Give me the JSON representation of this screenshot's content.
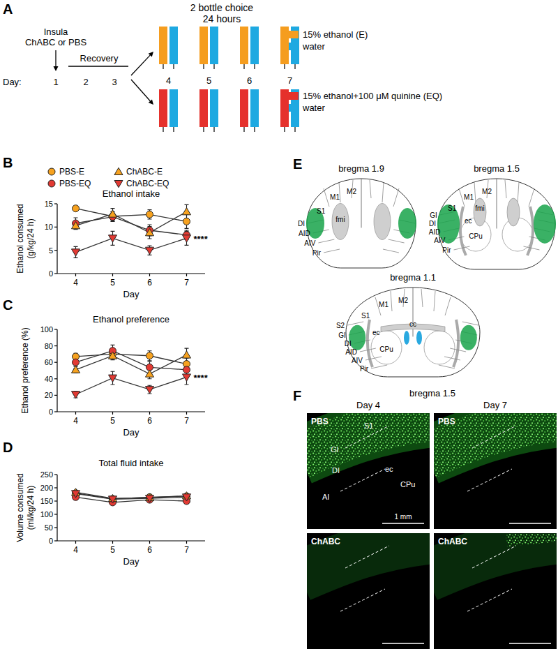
{
  "panel_labels": [
    "A",
    "B",
    "C",
    "D",
    "E",
    "F"
  ],
  "schematic": {
    "header": [
      "2 bottle choice",
      "24 hours"
    ],
    "treatment": [
      "Insula",
      "ChABC or PBS"
    ],
    "recovery": "Recovery",
    "day_label": "Day:",
    "surgery_days": [
      1,
      2,
      3
    ],
    "choice_days": [
      4,
      5,
      6,
      7
    ],
    "groups": [
      {
        "bottles": [
          {
            "label": "15% ethanol (E)",
            "color": "#f59d1f"
          },
          {
            "label": "water",
            "color": "#1ea9e1"
          }
        ]
      },
      {
        "bottles": [
          {
            "label": "15% ethanol+100 μM quinine (EQ)",
            "color": "#e5312c"
          },
          {
            "label": "water",
            "color": "#1ea9e1"
          }
        ]
      }
    ]
  },
  "chart_data": [
    {
      "type": "line",
      "title": "Ethanol intake",
      "x_label": "Day",
      "y_label": [
        "Ethanol consumed",
        "(g/kg/24 h)"
      ],
      "x": [
        4,
        5,
        6,
        7
      ],
      "xlim": [
        3.5,
        7.5
      ],
      "xticks": [
        4,
        5,
        6,
        7
      ],
      "ylim": [
        0,
        15
      ],
      "yticks": [
        0,
        5,
        10,
        15
      ],
      "legend": "top",
      "annotation": "****",
      "series": [
        {
          "name": "PBS-E",
          "color": "#f7a21f",
          "marker": "circle",
          "values": [
            14.0,
            12.3,
            12.7,
            11.2
          ],
          "errors": [
            0.5,
            1.0,
            1.0,
            1.5
          ]
        },
        {
          "name": "PBS-EQ",
          "color": "#e23a33",
          "marker": "circle",
          "values": [
            10.8,
            12.2,
            9.3,
            8.3
          ],
          "errors": [
            1.2,
            1.0,
            1.2,
            1.0
          ]
        },
        {
          "name": "ChABC-E",
          "color": "#f7a21f",
          "marker": "triangle",
          "values": [
            10.3,
            12.8,
            8.8,
            13.3
          ],
          "errors": [
            0.8,
            1.2,
            1.3,
            1.5
          ]
        },
        {
          "name": "ChABC-EQ",
          "color": "#e23a33",
          "marker": "triangle-down",
          "values": [
            4.6,
            7.6,
            5.0,
            7.6
          ],
          "errors": [
            1.2,
            1.5,
            1.0,
            1.5
          ]
        }
      ]
    },
    {
      "type": "line",
      "title": "Ethanol preference",
      "x_label": "Day",
      "y_label": "Ethanol preference (%)",
      "x": [
        4,
        5,
        6,
        7
      ],
      "xlim": [
        3.5,
        7.5
      ],
      "xticks": [
        4,
        5,
        6,
        7
      ],
      "ylim": [
        0,
        100
      ],
      "yticks": [
        0,
        20,
        40,
        60,
        80,
        100
      ],
      "annotation": "****",
      "series": [
        {
          "color": "#f7a21f",
          "marker": "circle",
          "values": [
            67,
            70,
            68,
            58
          ],
          "errors": [
            4,
            5,
            6,
            7
          ]
        },
        {
          "color": "#e23a33",
          "marker": "circle",
          "values": [
            60,
            74,
            54,
            51
          ],
          "errors": [
            7,
            7,
            7,
            7
          ]
        },
        {
          "color": "#f7a21f",
          "marker": "triangle",
          "values": [
            51,
            68,
            46,
            69
          ],
          "errors": [
            4,
            5,
            6,
            8
          ]
        },
        {
          "color": "#e23a33",
          "marker": "triangle-down",
          "values": [
            21,
            41,
            27,
            42
          ],
          "errors": [
            4,
            8,
            5,
            9
          ]
        }
      ]
    },
    {
      "type": "line",
      "title": "Total fluid intake",
      "x_label": "Day",
      "y_label": [
        "Volume consumed",
        "(ml/kg/24 h)"
      ],
      "x": [
        4,
        5,
        6,
        7
      ],
      "xlim": [
        3.5,
        7.5
      ],
      "xticks": [
        4,
        5,
        6,
        7
      ],
      "ylim": [
        0,
        250
      ],
      "yticks": [
        0,
        50,
        100,
        150,
        200,
        250
      ],
      "series": [
        {
          "color": "#f7a21f",
          "marker": "circle",
          "values": [
            180,
            158,
            165,
            168
          ],
          "errors": [
            6,
            6,
            8,
            6
          ]
        },
        {
          "color": "#e23a33",
          "marker": "circle",
          "values": [
            165,
            145,
            155,
            150
          ],
          "errors": [
            10,
            8,
            8,
            8
          ]
        },
        {
          "color": "#f7a21f",
          "marker": "triangle",
          "values": [
            183,
            160,
            163,
            170
          ],
          "errors": [
            6,
            6,
            8,
            6
          ]
        },
        {
          "color": "#e23a33",
          "marker": "triangle-down",
          "values": [
            178,
            157,
            160,
            165
          ],
          "errors": [
            6,
            6,
            6,
            8
          ]
        }
      ]
    }
  ],
  "atlas": {
    "sections": [
      {
        "title": "bregma 1.9",
        "regions": [
          "M2",
          "M1",
          "S1",
          "DI",
          "AID",
          "AIV",
          "Pir",
          "fmi"
        ]
      },
      {
        "title": "bregma 1.5",
        "regions": [
          "M2",
          "M1",
          "S1",
          "ec",
          "fmi",
          "CPu",
          "GI",
          "DI",
          "AID",
          "AIV",
          "Pir"
        ]
      },
      {
        "title": "bregma 1.1",
        "regions": [
          "M2",
          "M1",
          "S1",
          "S2",
          "cc",
          "ec",
          "CPu",
          "GI",
          "DI",
          "AID",
          "AIV",
          "Pir"
        ]
      }
    ]
  },
  "micrographs": {
    "title": "bregma 1.5",
    "columns": [
      "Day 4",
      "Day 7"
    ],
    "rows": [
      "PBS",
      "ChABC"
    ],
    "regions": [
      "S1",
      "GI",
      "DI",
      "ec",
      "CPu",
      "AI"
    ],
    "scale_bar": "1 mm"
  }
}
